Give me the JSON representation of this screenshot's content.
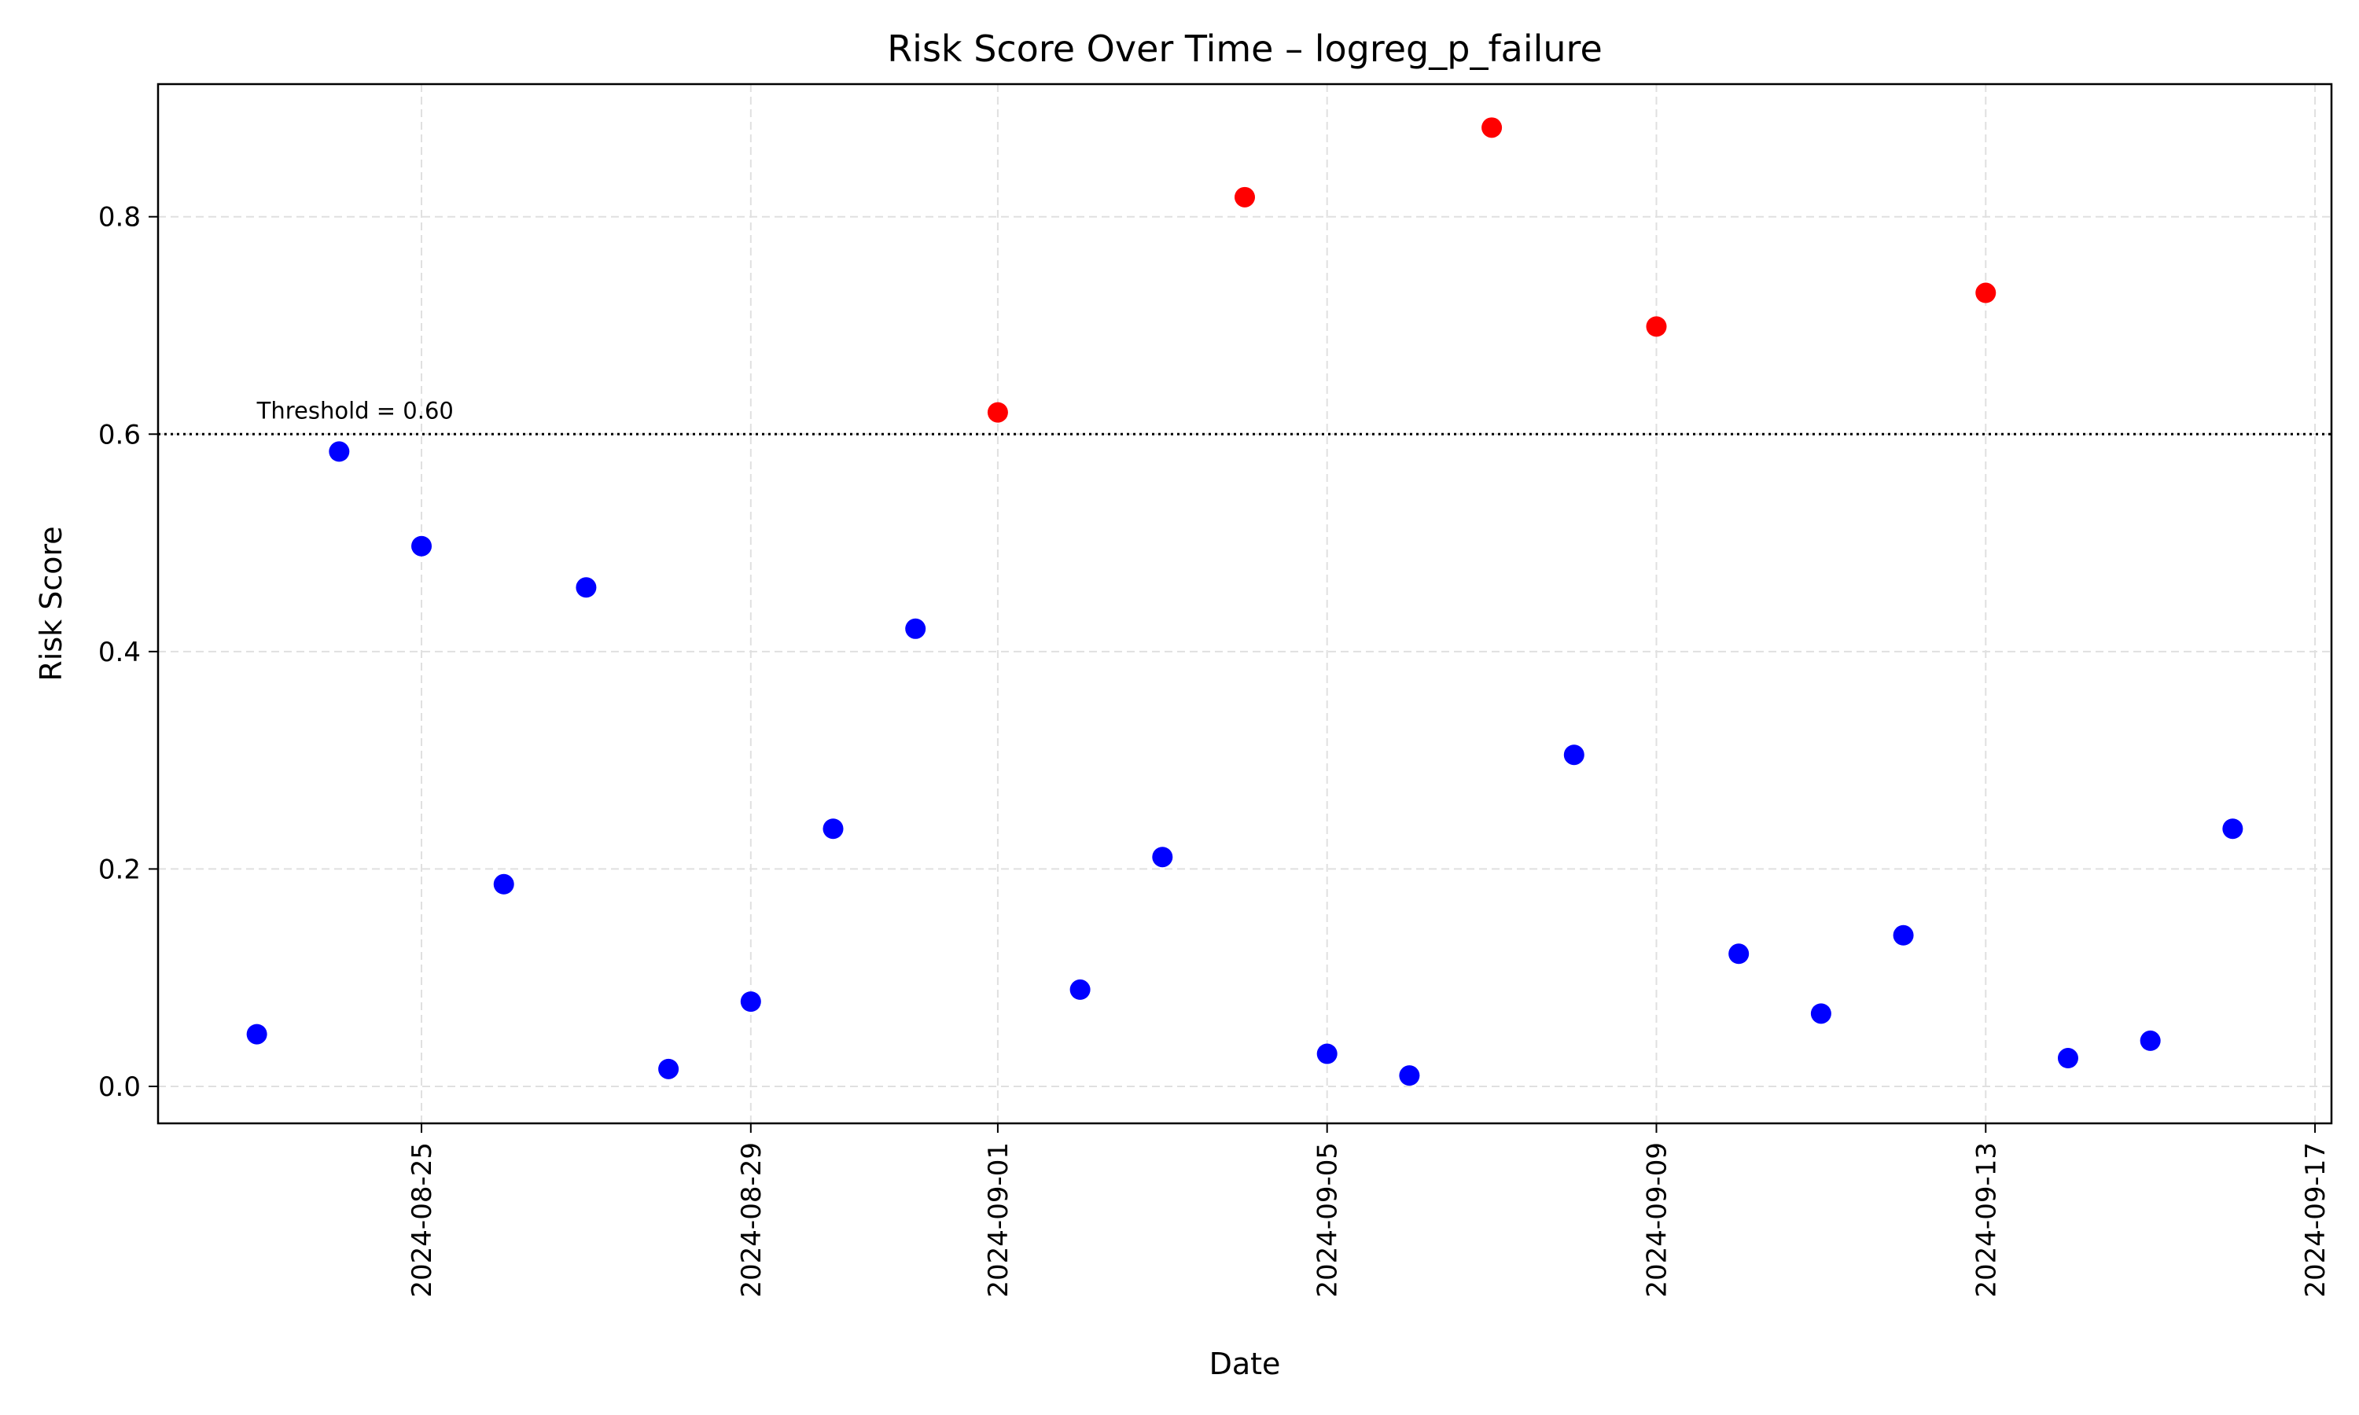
{
  "chart_data": {
    "type": "scatter",
    "title": "Risk Score Over Time – logreg_p_failure",
    "xlabel": "Date",
    "ylabel": "Risk Score",
    "xlim": [
      "2024-08-21T19:12",
      "2024-09-17T04:48"
    ],
    "ylim": [
      -0.034,
      0.922
    ],
    "x_ticks": [
      "2024-08-25",
      "2024-08-29",
      "2024-09-01",
      "2024-09-05",
      "2024-09-09",
      "2024-09-13",
      "2024-09-17"
    ],
    "y_ticks": [
      0.0,
      0.2,
      0.4,
      0.6,
      0.8
    ],
    "y_tick_labels": [
      "0.0",
      "0.2",
      "0.4",
      "0.6",
      "0.8"
    ],
    "grid": true,
    "threshold": {
      "value": 0.6,
      "label": "Threshold = 0.60"
    },
    "colors": {
      "above_threshold": "#ff0000",
      "below_threshold": "#0000ff",
      "threshold_line": "#000000"
    },
    "points": [
      {
        "x": "2024-08-23",
        "y": 0.048
      },
      {
        "x": "2024-08-24",
        "y": 0.584
      },
      {
        "x": "2024-08-25",
        "y": 0.497
      },
      {
        "x": "2024-08-26",
        "y": 0.186
      },
      {
        "x": "2024-08-27",
        "y": 0.459
      },
      {
        "x": "2024-08-28",
        "y": 0.016
      },
      {
        "x": "2024-08-29",
        "y": 0.078
      },
      {
        "x": "2024-08-30",
        "y": 0.237
      },
      {
        "x": "2024-08-31",
        "y": 0.421
      },
      {
        "x": "2024-09-01",
        "y": 0.62
      },
      {
        "x": "2024-09-02",
        "y": 0.089
      },
      {
        "x": "2024-09-03",
        "y": 0.211
      },
      {
        "x": "2024-09-04",
        "y": 0.818
      },
      {
        "x": "2024-09-05",
        "y": 0.03
      },
      {
        "x": "2024-09-06",
        "y": 0.01
      },
      {
        "x": "2024-09-07",
        "y": 0.882
      },
      {
        "x": "2024-09-08",
        "y": 0.305
      },
      {
        "x": "2024-09-09",
        "y": 0.699
      },
      {
        "x": "2024-09-10",
        "y": 0.122
      },
      {
        "x": "2024-09-11",
        "y": 0.067
      },
      {
        "x": "2024-09-12",
        "y": 0.139
      },
      {
        "x": "2024-09-13",
        "y": 0.73
      },
      {
        "x": "2024-09-14",
        "y": 0.026
      },
      {
        "x": "2024-09-15",
        "y": 0.042
      },
      {
        "x": "2024-09-16",
        "y": 0.237
      }
    ]
  }
}
